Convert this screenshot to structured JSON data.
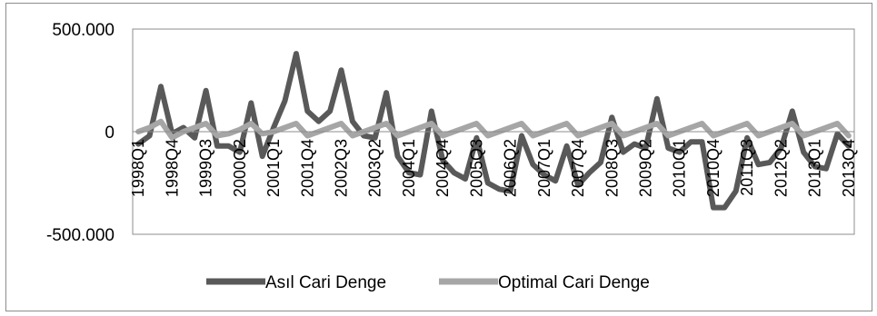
{
  "chart_data": {
    "type": "line",
    "ylim": [
      -500000,
      500000
    ],
    "yticks": [
      500000,
      0,
      -500000
    ],
    "ytick_labels": [
      "500.000",
      "0",
      "-500.000"
    ],
    "categories": [
      "1998Q1",
      "1998Q2",
      "1998Q3",
      "1998Q4",
      "1999Q1",
      "1999Q2",
      "1999Q3",
      "1999Q4",
      "2000Q1",
      "2000Q2",
      "2000Q3",
      "2000Q4",
      "2001Q1",
      "2001Q2",
      "2001Q3",
      "2001Q4",
      "2002Q1",
      "2002Q2",
      "2002Q3",
      "2002Q4",
      "2003Q1",
      "2003Q2",
      "2003Q3",
      "2003Q4",
      "2004Q1",
      "2004Q2",
      "2004Q3",
      "2004Q4",
      "2005Q1",
      "2005Q2",
      "2005Q3",
      "2005Q4",
      "2006Q1",
      "2006Q2",
      "2006Q3",
      "2006Q4",
      "2007Q1",
      "2007Q2",
      "2007Q3",
      "2007Q4",
      "2008Q1",
      "2008Q2",
      "2008Q3",
      "2008Q4",
      "2009Q1",
      "2009Q2",
      "2009Q3",
      "2009Q4",
      "2010Q1",
      "2010Q2",
      "2010Q3",
      "2010Q4",
      "2011Q1",
      "2011Q2",
      "2011Q3",
      "2011Q4",
      "2012Q1",
      "2012Q2",
      "2012Q3",
      "2012Q4",
      "2013Q1",
      "2013Q2",
      "2013Q3",
      "2013Q4"
    ],
    "xtick_labels": [
      "1998Q1",
      "1998Q4",
      "1999Q3",
      "2000Q2",
      "2001Q1",
      "2001Q4",
      "2002Q3",
      "2003Q2",
      "2004Q1",
      "2004Q4",
      "2005Q3",
      "2006Q2",
      "2007Q1",
      "2007Q4",
      "2008Q3",
      "2009Q2",
      "2010Q1",
      "2010Q4",
      "2011Q3",
      "2012Q2",
      "2013Q1",
      "2013Q4"
    ],
    "series": [
      {
        "name": "Asıl Cari Denge",
        "color": "#595959",
        "values": [
          -60000,
          -20000,
          220000,
          -10000,
          20000,
          -30000,
          200000,
          -70000,
          -70000,
          -100000,
          140000,
          -120000,
          20000,
          150000,
          380000,
          100000,
          50000,
          100000,
          300000,
          50000,
          -20000,
          -30000,
          190000,
          -120000,
          -200000,
          -210000,
          100000,
          -140000,
          -200000,
          -230000,
          -30000,
          -250000,
          -280000,
          -290000,
          -20000,
          -160000,
          -210000,
          -240000,
          -70000,
          -260000,
          -200000,
          -150000,
          70000,
          -100000,
          -60000,
          -80000,
          160000,
          -80000,
          -100000,
          -50000,
          -50000,
          -370000,
          -370000,
          -290000,
          -30000,
          -160000,
          -150000,
          -80000,
          100000,
          -100000,
          -170000,
          -180000,
          -10000,
          -70000
        ]
      },
      {
        "name": "Optimal Cari Denge",
        "color": "#a6a6a6",
        "values": [
          0,
          20000,
          50000,
          -30000,
          0,
          20000,
          40000,
          -20000,
          -10000,
          10000,
          40000,
          -10000,
          0,
          20000,
          40000,
          -20000,
          0,
          20000,
          40000,
          -20000,
          0,
          20000,
          40000,
          -20000,
          0,
          20000,
          40000,
          -20000,
          0,
          20000,
          40000,
          -20000,
          0,
          20000,
          40000,
          -20000,
          0,
          20000,
          40000,
          -20000,
          0,
          20000,
          40000,
          -20000,
          0,
          20000,
          40000,
          -20000,
          0,
          20000,
          40000,
          -20000,
          0,
          20000,
          40000,
          -20000,
          0,
          20000,
          40000,
          -20000,
          0,
          20000,
          40000,
          -20000
        ]
      }
    ],
    "legend_position": "bottom",
    "grid": false
  }
}
